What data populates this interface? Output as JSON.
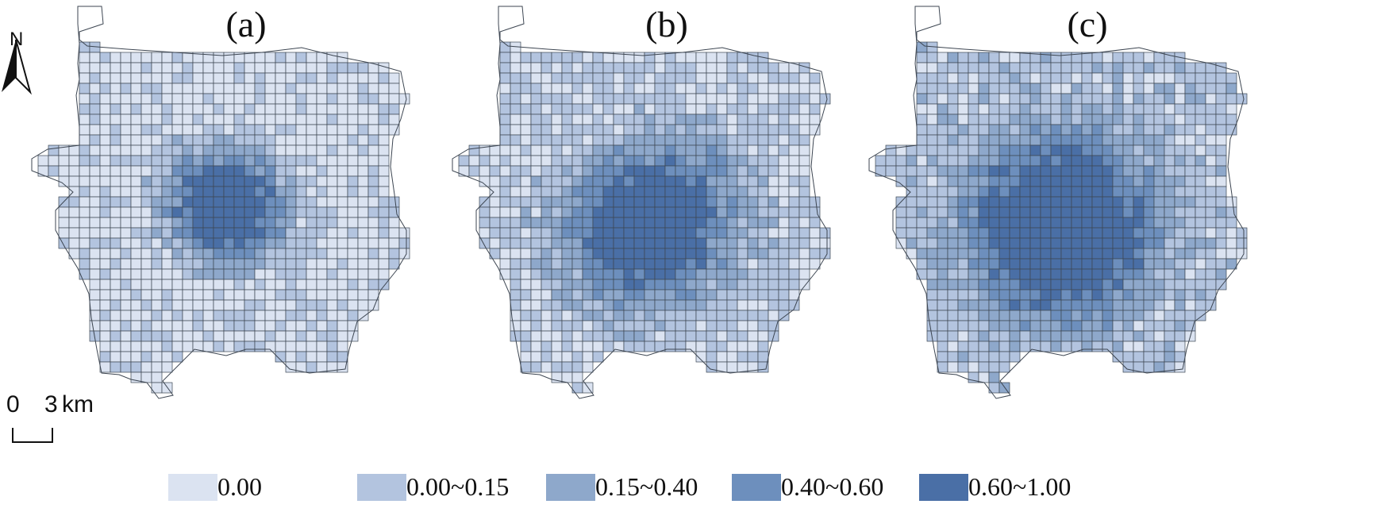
{
  "north_arrow": {
    "letter": "N",
    "icon": "north-arrow-icon"
  },
  "scale_bar": {
    "start": "0",
    "end": "3",
    "unit": "km"
  },
  "panels": [
    {
      "label": "(a)"
    },
    {
      "label": "(b)"
    },
    {
      "label": "(c)"
    }
  ],
  "legend": [
    {
      "label": "0.00",
      "color": "#dbe3f1"
    },
    {
      "label": "0.00~0.15",
      "color": "#b3c4df"
    },
    {
      "label": "0.15~0.40",
      "color": "#8ea8cb"
    },
    {
      "label": "0.40~0.60",
      "color": "#6d8fbd"
    },
    {
      "label": "0.60~1.00",
      "color": "#4a6fa6"
    }
  ]
}
